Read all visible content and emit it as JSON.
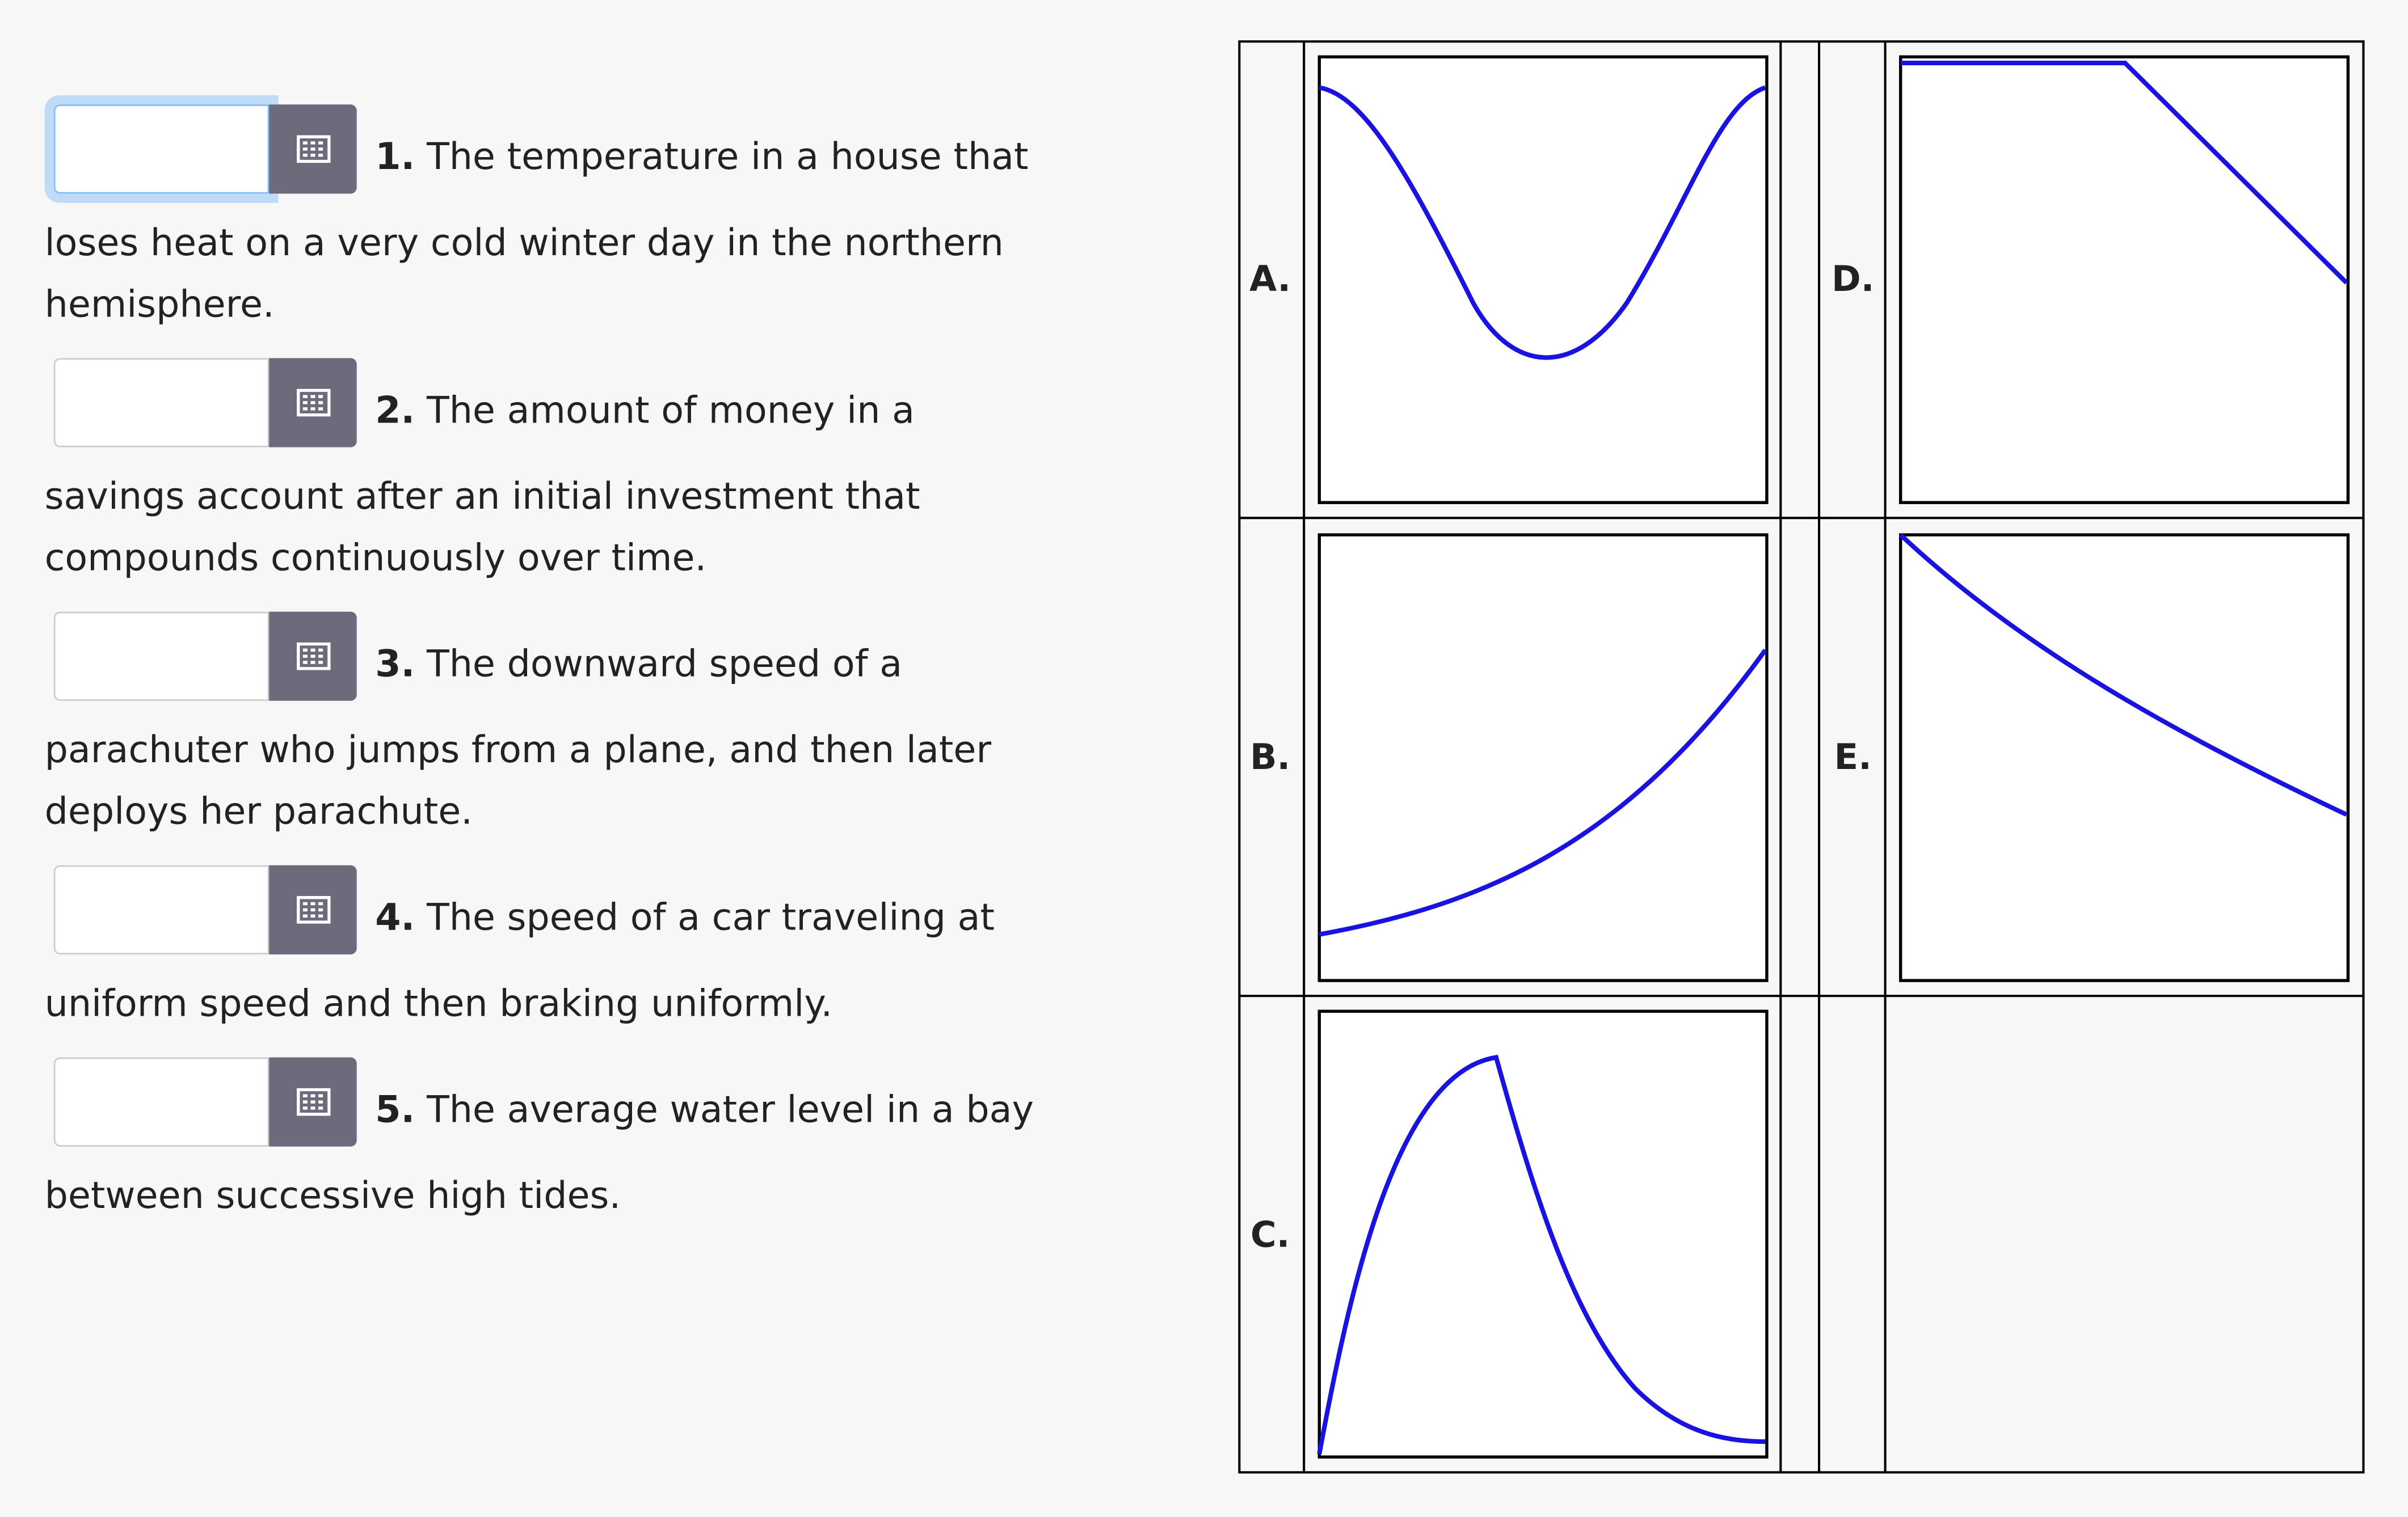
{
  "questions": [
    {
      "number": "1.",
      "text": "The temperature in a house that loses heat on a very cold winter day in the northern hemisphere."
    },
    {
      "number": "2.",
      "text": "The amount of money in a savings account after an initial investment that compounds continuously over time."
    },
    {
      "number": "3.",
      "text": "The downward speed of a parachuter who jumps from a plane, and then later deploys her parachute."
    },
    {
      "number": "4.",
      "text": "The speed of a car traveling at uniform speed and then braking uniformly."
    },
    {
      "number": "5.",
      "text": "The average water level in a bay between successive high tides."
    }
  ],
  "graphs": [
    {
      "label": "A."
    },
    {
      "label": "B."
    },
    {
      "label": "C."
    },
    {
      "label": "D."
    },
    {
      "label": "E."
    }
  ]
}
